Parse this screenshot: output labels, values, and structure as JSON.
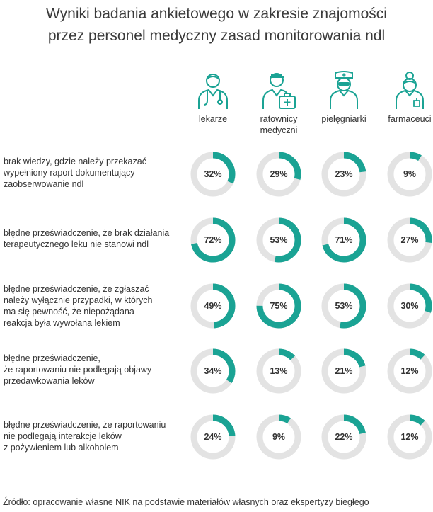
{
  "title": {
    "line1": "Wyniki badania ankietowego w zakresie znajomości",
    "line2": "przez personel medyczny zasad monitorowania ndl"
  },
  "colors": {
    "accent": "#1aa394",
    "track": "#e3e3e3",
    "icon": "#1aa394"
  },
  "groups": [
    {
      "icon": "doctor-icon",
      "label_lines": [
        "lekarze"
      ]
    },
    {
      "icon": "paramedic-icon",
      "label_lines": [
        "ratownicy",
        "medyczni"
      ]
    },
    {
      "icon": "nurse-icon",
      "label_lines": [
        "pielęgniarki"
      ]
    },
    {
      "icon": "pharmacist-icon",
      "label_lines": [
        "farmaceuci"
      ]
    }
  ],
  "rows": [
    {
      "label_lines": [
        "brak wiedzy, gdzie należy przekazać",
        "wypełniony raport dokumentujący",
        "zaobserwowanie ndl"
      ]
    },
    {
      "label_lines": [
        "błędne przeświadczenie, że brak działania",
        "terapeutycznego leku nie stanowi ndl"
      ]
    },
    {
      "label_lines": [
        "błędne przeświadczenie, że zgłaszać",
        "należy wyłącznie przypadki, w których",
        "ma się pewność, że niepożądana",
        "reakcja była wywołana lekiem"
      ]
    },
    {
      "label_lines": [
        "błędne przeświadczenie,",
        "że raportowaniu nie podlegają objawy",
        "przedawkowania leków"
      ]
    },
    {
      "label_lines": [
        "błędne przeświadczenie, że raportowaniu",
        "nie podlegają interakcje leków",
        "z pożywieniem lub alkoholem"
      ]
    }
  ],
  "chart_data": {
    "type": "donut-grid",
    "categories": [
      "lekarze",
      "ratownicy medyczni",
      "pielęgniarki",
      "farmaceuci"
    ],
    "unit": "%",
    "values": [
      [
        32,
        29,
        23,
        9
      ],
      [
        72,
        53,
        71,
        27
      ],
      [
        49,
        75,
        53,
        30
      ],
      [
        34,
        13,
        21,
        12
      ],
      [
        24,
        9,
        22,
        12
      ]
    ]
  },
  "source": "Źródło: opracowanie własne NIK na podstawie materiałów własnych oraz ekspertyzy biegłego"
}
